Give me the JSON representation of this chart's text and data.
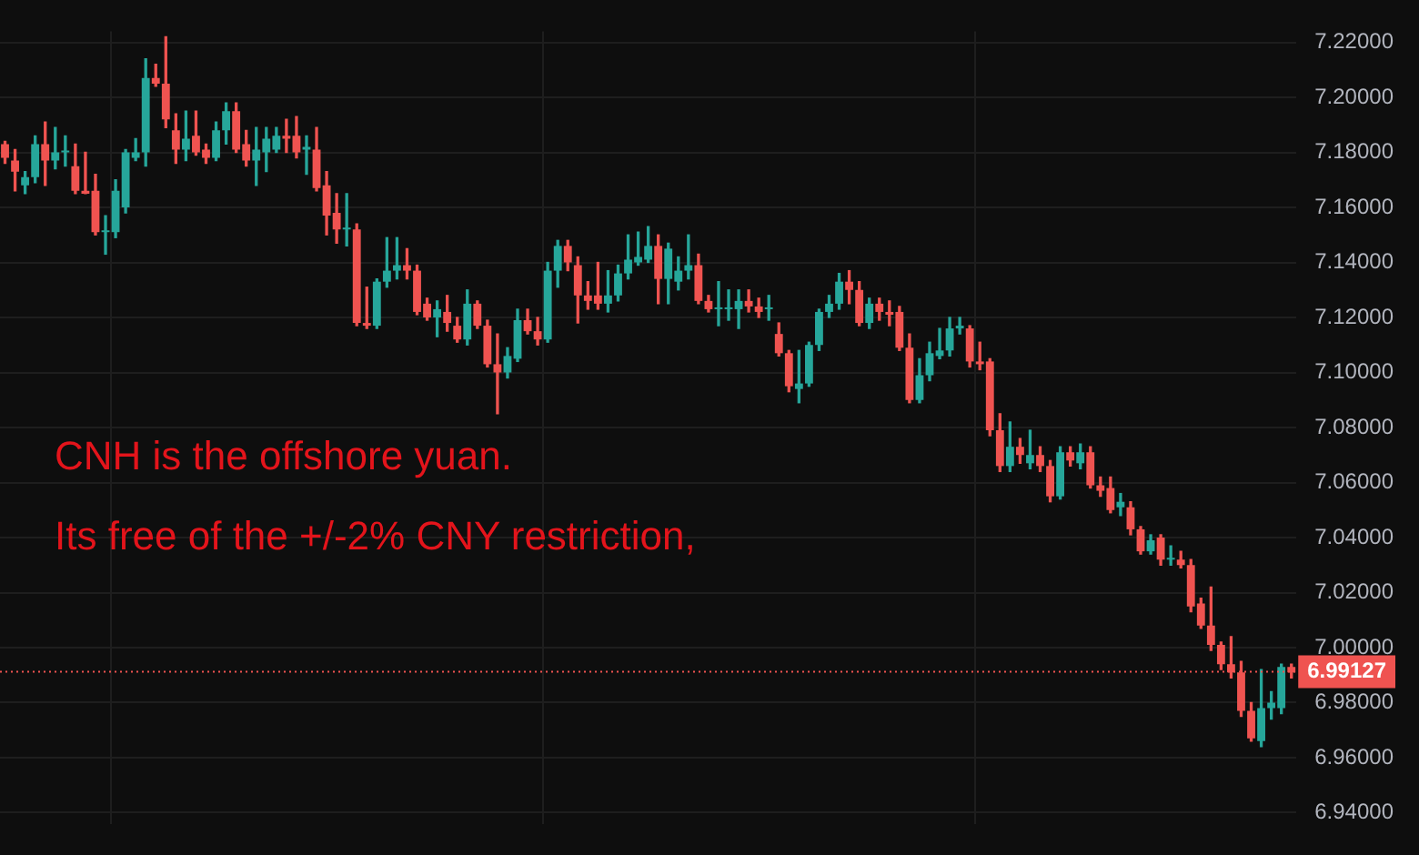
{
  "chart_data": {
    "type": "candlestick",
    "categories": [
      null,
      null,
      null,
      null,
      null,
      null,
      null,
      null,
      null,
      null,
      null,
      null,
      null,
      null,
      null,
      null,
      null,
      null,
      null,
      null,
      null,
      null,
      null,
      null,
      null,
      null,
      null,
      null,
      null,
      null,
      null,
      null,
      null,
      null,
      null,
      null,
      null,
      null,
      null,
      null,
      null,
      null,
      null,
      null,
      null,
      null,
      null,
      null,
      null,
      null,
      null,
      null,
      null,
      null,
      null,
      null,
      null,
      null,
      null,
      null,
      null,
      null,
      null,
      null,
      null,
      null,
      null,
      null,
      null,
      null,
      null,
      null,
      null,
      null,
      null,
      null,
      null,
      null,
      null,
      null,
      null,
      null,
      null,
      null,
      null,
      null,
      null,
      null,
      null,
      null,
      null,
      null,
      null,
      null,
      null,
      null,
      null,
      null,
      null,
      null,
      null,
      null,
      null,
      null,
      null,
      null,
      null,
      null,
      null,
      null,
      null,
      null,
      null,
      null,
      null,
      null,
      null,
      null,
      null,
      null,
      null,
      null,
      null,
      null,
      null,
      null,
      null,
      null,
      null
    ],
    "ohlc": [
      [
        7.183,
        7.184,
        7.176,
        7.178
      ],
      [
        7.177,
        7.181,
        7.166,
        7.173
      ],
      [
        7.168,
        7.173,
        7.165,
        7.171
      ],
      [
        7.171,
        7.186,
        7.169,
        7.183
      ],
      [
        7.183,
        7.191,
        7.168,
        7.177
      ],
      [
        7.177,
        7.189,
        7.174,
        7.18
      ],
      [
        7.18,
        7.186,
        7.175,
        7.18
      ],
      [
        7.175,
        7.183,
        7.165,
        7.166
      ],
      [
        7.166,
        7.18,
        7.165,
        7.165
      ],
      [
        7.166,
        7.172,
        7.15,
        7.151
      ],
      [
        7.151,
        7.157,
        7.143,
        7.151
      ],
      [
        7.151,
        7.17,
        7.149,
        7.166
      ],
      [
        7.16,
        7.181,
        7.158,
        7.18
      ],
      [
        7.178,
        7.185,
        7.177,
        7.18
      ],
      [
        7.18,
        7.214,
        7.175,
        7.207
      ],
      [
        7.207,
        7.212,
        7.204,
        7.205
      ],
      [
        7.205,
        7.222,
        7.189,
        7.192
      ],
      [
        7.188,
        7.194,
        7.176,
        7.181
      ],
      [
        7.181,
        7.195,
        7.177,
        7.185
      ],
      [
        7.186,
        7.195,
        7.179,
        7.18
      ],
      [
        7.181,
        7.183,
        7.176,
        7.178
      ],
      [
        7.178,
        7.191,
        7.177,
        7.188
      ],
      [
        7.188,
        7.198,
        7.183,
        7.195
      ],
      [
        7.195,
        7.198,
        7.18,
        7.181
      ],
      [
        7.183,
        7.188,
        7.175,
        7.177
      ],
      [
        7.177,
        7.189,
        7.168,
        7.181
      ],
      [
        7.18,
        7.189,
        7.173,
        7.185
      ],
      [
        7.181,
        7.189,
        7.18,
        7.186
      ],
      [
        7.186,
        7.192,
        7.18,
        7.185
      ],
      [
        7.186,
        7.193,
        7.178,
        7.18
      ],
      [
        7.181,
        7.186,
        7.172,
        7.182
      ],
      [
        7.181,
        7.189,
        7.166,
        7.167
      ],
      [
        7.168,
        7.173,
        7.15,
        7.157
      ],
      [
        7.158,
        7.165,
        7.147,
        7.152
      ],
      [
        7.152,
        7.165,
        7.146,
        7.152
      ],
      [
        7.152,
        7.154,
        7.117,
        7.118
      ],
      [
        7.118,
        7.131,
        7.116,
        7.117
      ],
      [
        7.117,
        7.134,
        7.116,
        7.133
      ],
      [
        7.133,
        7.149,
        7.131,
        7.137
      ],
      [
        7.137,
        7.149,
        7.134,
        7.139
      ],
      [
        7.139,
        7.145,
        7.134,
        7.137
      ],
      [
        7.137,
        7.139,
        7.121,
        7.122
      ],
      [
        7.125,
        7.127,
        7.119,
        7.12
      ],
      [
        7.12,
        7.126,
        7.113,
        7.123
      ],
      [
        7.122,
        7.128,
        7.115,
        7.118
      ],
      [
        7.117,
        7.12,
        7.111,
        7.112
      ],
      [
        7.112,
        7.13,
        7.11,
        7.125
      ],
      [
        7.125,
        7.126,
        7.116,
        7.117
      ],
      [
        7.117,
        7.119,
        7.102,
        7.103
      ],
      [
        7.103,
        7.114,
        7.085,
        7.1
      ],
      [
        7.1,
        7.109,
        7.098,
        7.106
      ],
      [
        7.105,
        7.123,
        7.104,
        7.119
      ],
      [
        7.119,
        7.123,
        7.114,
        7.115
      ],
      [
        7.115,
        7.12,
        7.11,
        7.112
      ],
      [
        7.112,
        7.14,
        7.111,
        7.137
      ],
      [
        7.137,
        7.148,
        7.131,
        7.146
      ],
      [
        7.146,
        7.148,
        7.137,
        7.14
      ],
      [
        7.139,
        7.142,
        7.118,
        7.128
      ],
      [
        7.128,
        7.133,
        7.123,
        7.126
      ],
      [
        7.128,
        7.14,
        7.123,
        7.125
      ],
      [
        7.125,
        7.137,
        7.122,
        7.128
      ],
      [
        7.128,
        7.139,
        7.126,
        7.136
      ],
      [
        7.136,
        7.15,
        7.134,
        7.141
      ],
      [
        7.14,
        7.151,
        7.139,
        7.142
      ],
      [
        7.141,
        7.153,
        7.14,
        7.146
      ],
      [
        7.146,
        7.15,
        7.125,
        7.134
      ],
      [
        7.134,
        7.147,
        7.125,
        7.145
      ],
      [
        7.133,
        7.142,
        7.13,
        7.137
      ],
      [
        7.137,
        7.15,
        7.134,
        7.139
      ],
      [
        7.139,
        7.143,
        7.125,
        7.126
      ],
      [
        7.126,
        7.128,
        7.122,
        7.123
      ],
      [
        7.123,
        7.133,
        7.117,
        7.123
      ],
      [
        7.123,
        7.13,
        7.119,
        7.123
      ],
      [
        7.123,
        7.13,
        7.116,
        7.126
      ],
      [
        7.126,
        7.13,
        7.122,
        7.124
      ],
      [
        7.124,
        7.127,
        7.12,
        7.122
      ],
      [
        7.123,
        7.128,
        7.119,
        7.123
      ],
      [
        7.114,
        7.118,
        7.106,
        7.107
      ],
      [
        7.107,
        7.108,
        7.093,
        7.095
      ],
      [
        7.094,
        7.108,
        7.089,
        7.096
      ],
      [
        7.096,
        7.111,
        7.095,
        7.11
      ],
      [
        7.11,
        7.123,
        7.108,
        7.122
      ],
      [
        7.122,
        7.128,
        7.12,
        7.125
      ],
      [
        7.125,
        7.136,
        7.123,
        7.133
      ],
      [
        7.133,
        7.137,
        7.125,
        7.13
      ],
      [
        7.13,
        7.133,
        7.117,
        7.118
      ],
      [
        7.118,
        7.127,
        7.116,
        7.125
      ],
      [
        7.125,
        7.127,
        7.119,
        7.122
      ],
      [
        7.122,
        7.126,
        7.117,
        7.121
      ],
      [
        7.122,
        7.124,
        7.108,
        7.109
      ],
      [
        7.109,
        7.114,
        7.089,
        7.09
      ],
      [
        7.09,
        7.105,
        7.089,
        7.099
      ],
      [
        7.099,
        7.111,
        7.097,
        7.107
      ],
      [
        7.106,
        7.116,
        7.105,
        7.108
      ],
      [
        7.108,
        7.12,
        7.106,
        7.116
      ],
      [
        7.116,
        7.12,
        7.114,
        7.117
      ],
      [
        7.116,
        7.117,
        7.102,
        7.104
      ],
      [
        7.104,
        7.111,
        7.101,
        7.103
      ],
      [
        7.104,
        7.105,
        7.077,
        7.079
      ],
      [
        7.079,
        7.085,
        7.064,
        7.066
      ],
      [
        7.066,
        7.082,
        7.064,
        7.073
      ],
      [
        7.073,
        7.076,
        7.067,
        7.07
      ],
      [
        7.067,
        7.079,
        7.065,
        7.07
      ],
      [
        7.07,
        7.073,
        7.064,
        7.066
      ],
      [
        7.066,
        7.068,
        7.053,
        7.055
      ],
      [
        7.055,
        7.073,
        7.054,
        7.071
      ],
      [
        7.071,
        7.073,
        7.066,
        7.068
      ],
      [
        7.067,
        7.074,
        7.065,
        7.071
      ],
      [
        7.071,
        7.073,
        7.058,
        7.059
      ],
      [
        7.059,
        7.062,
        7.055,
        7.057
      ],
      [
        7.058,
        7.062,
        7.049,
        7.05
      ],
      [
        7.051,
        7.056,
        7.048,
        7.053
      ],
      [
        7.051,
        7.053,
        7.041,
        7.043
      ],
      [
        7.043,
        7.044,
        7.034,
        7.035
      ],
      [
        7.035,
        7.041,
        7.034,
        7.039
      ],
      [
        7.04,
        7.041,
        7.03,
        7.032
      ],
      [
        7.032,
        7.037,
        7.03,
        7.032
      ],
      [
        7.032,
        7.035,
        7.029,
        7.03
      ],
      [
        7.03,
        7.032,
        7.013,
        7.015
      ],
      [
        7.016,
        7.018,
        7.007,
        7.008
      ],
      [
        7.008,
        7.022,
        6.999,
        7.001
      ],
      [
        7.001,
        7.002,
        6.992,
        6.994
      ],
      [
        6.994,
        7.004,
        6.989,
        6.991
      ],
      [
        6.991,
        6.995,
        6.975,
        6.977
      ],
      [
        6.977,
        6.98,
        6.966,
        6.967
      ],
      [
        6.966,
        6.992,
        6.964,
        6.978
      ],
      [
        6.978,
        6.984,
        6.974,
        6.98
      ],
      [
        6.978,
        6.994,
        6.976,
        6.993
      ],
      [
        6.993,
        6.994,
        6.989,
        6.991
      ]
    ],
    "colors": [
      "#ef5350",
      "#ef5350",
      "#26a69a",
      "#26a69a",
      "#ef5350",
      "#26a69a",
      "#26a69a",
      "#ef5350",
      "#ef5350",
      "#ef5350",
      "#26a69a",
      "#26a69a",
      "#26a69a",
      "#26a69a",
      "#26a69a",
      "#ef5350",
      "#ef5350",
      "#ef5350",
      "#26a69a",
      "#ef5350",
      "#ef5350",
      "#26a69a",
      "#26a69a",
      "#ef5350",
      "#ef5350",
      "#26a69a",
      "#26a69a",
      "#26a69a",
      "#ef5350",
      "#ef5350",
      "#26a69a",
      "#ef5350",
      "#ef5350",
      "#ef5350",
      "#26a69a",
      "#ef5350",
      "#ef5350",
      "#26a69a",
      "#26a69a",
      "#26a69a",
      "#ef5350",
      "#ef5350",
      "#ef5350",
      "#26a69a",
      "#ef5350",
      "#ef5350",
      "#26a69a",
      "#ef5350",
      "#ef5350",
      "#ef5350",
      "#26a69a",
      "#26a69a",
      "#ef5350",
      "#ef5350",
      "#26a69a",
      "#26a69a",
      "#ef5350",
      "#ef5350",
      "#ef5350",
      "#ef5350",
      "#26a69a",
      "#26a69a",
      "#26a69a",
      "#26a69a",
      "#26a69a",
      "#ef5350",
      "#26a69a",
      "#26a69a",
      "#26a69a",
      "#ef5350",
      "#ef5350",
      "#26a69a",
      "#26a69a",
      "#26a69a",
      "#ef5350",
      "#ef5350",
      "#26a69a",
      "#ef5350",
      "#ef5350",
      "#26a69a",
      "#26a69a",
      "#26a69a",
      "#26a69a",
      "#26a69a",
      "#ef5350",
      "#ef5350",
      "#26a69a",
      "#ef5350",
      "#ef5350",
      "#ef5350",
      "#ef5350",
      "#26a69a",
      "#26a69a",
      "#26a69a",
      "#26a69a",
      "#26a69a",
      "#ef5350",
      "#ef5350",
      "#ef5350",
      "#ef5350",
      "#26a69a",
      "#ef5350",
      "#26a69a",
      "#ef5350",
      "#ef5350",
      "#26a69a",
      "#ef5350",
      "#26a69a",
      "#ef5350",
      "#ef5350",
      "#ef5350",
      "#26a69a",
      "#ef5350",
      "#ef5350",
      "#26a69a",
      "#ef5350",
      "#26a69a",
      "#ef5350",
      "#ef5350",
      "#ef5350",
      "#ef5350",
      "#ef5350",
      "#ef5350",
      "#ef5350",
      "#ef5350",
      "#26a69a",
      "#26a69a",
      "#26a69a",
      "#ef5350"
    ],
    "ylim": [
      6.936,
      7.224
    ],
    "yticks": [
      {
        "value": 6.94,
        "label": "6.94000"
      },
      {
        "value": 6.96,
        "label": "6.96000"
      },
      {
        "value": 6.98,
        "label": "6.98000"
      },
      {
        "value": 7.0,
        "label": "7.00000"
      },
      {
        "value": 7.02,
        "label": "7.02000"
      },
      {
        "value": 7.04,
        "label": "7.04000"
      },
      {
        "value": 7.06,
        "label": "7.06000"
      },
      {
        "value": 7.08,
        "label": "7.08000"
      },
      {
        "value": 7.1,
        "label": "7.10000"
      },
      {
        "value": 7.12,
        "label": "7.12000"
      },
      {
        "value": 7.14,
        "label": "7.14000"
      },
      {
        "value": 7.16,
        "label": "7.16000"
      },
      {
        "value": 7.18,
        "label": "7.18000"
      },
      {
        "value": 7.2,
        "label": "7.20000"
      },
      {
        "value": 7.22,
        "label": "7.22000"
      }
    ],
    "grid": true,
    "tick_labels": "y",
    "ref_lines": [
      {
        "axis": "y",
        "value": 6.99127,
        "label": "6.99127",
        "color": "#ef5350",
        "line_style": "dotted"
      }
    ],
    "annotations": [
      "CNH is the offshore yuan.",
      "Its free of the +/-2% CNY restriction,"
    ]
  }
}
